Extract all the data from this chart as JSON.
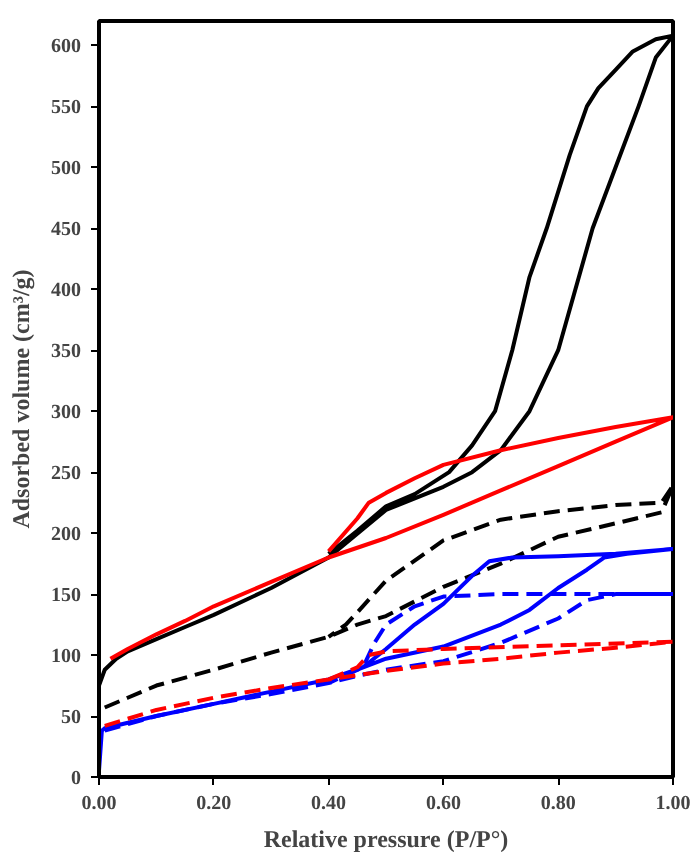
{
  "chart_data": {
    "type": "line",
    "xlabel": "Relative pressure (P/P°)",
    "ylabel": "Adsorbed volume (cm³/g)",
    "xlim": [
      0,
      1
    ],
    "ylim": [
      0,
      620
    ],
    "xticks": [
      {
        "value": 0,
        "label": "0.00"
      },
      {
        "value": 0.2,
        "label": "0.20"
      },
      {
        "value": 0.4,
        "label": "0.40"
      },
      {
        "value": 0.6,
        "label": "0.60"
      },
      {
        "value": 0.8,
        "label": "0.80"
      },
      {
        "value": 1,
        "label": "1.00"
      }
    ],
    "yticks": [
      0,
      50,
      100,
      150,
      200,
      250,
      300,
      350,
      400,
      450,
      500,
      550,
      600
    ],
    "grid": false,
    "marker": "none",
    "series": [
      {
        "color": "#000000",
        "line_style": "solid",
        "x": [
          0,
          0.01,
          0.03,
          0.05,
          0.1,
          0.15,
          0.2,
          0.3,
          0.4,
          0.5,
          0.6,
          0.65,
          0.7,
          0.75,
          0.8,
          0.86,
          0.9,
          0.94,
          0.97,
          1.0,
          0.97,
          0.93,
          0.9,
          0.87,
          0.85,
          0.82,
          0.78,
          0.75,
          0.72,
          0.69,
          0.65,
          0.61,
          0.55,
          0.5,
          0.45,
          0.4
        ],
        "values": [
          75,
          88,
          97,
          103,
          113,
          123,
          133,
          155,
          180,
          219,
          238,
          250,
          268,
          300,
          350,
          450,
          500,
          550,
          590,
          608,
          605,
          595,
          580,
          565,
          550,
          510,
          450,
          410,
          350,
          300,
          272,
          250,
          232,
          222,
          202,
          183
        ]
      },
      {
        "color": "#ff0000",
        "line_style": "solid",
        "x": [
          0.02,
          0.05,
          0.1,
          0.15,
          0.2,
          0.3,
          0.4,
          0.5,
          0.6,
          0.7,
          0.8,
          0.9,
          1.0,
          0.9,
          0.8,
          0.7,
          0.6,
          0.55,
          0.5,
          0.47,
          0.45,
          0.4
        ],
        "values": [
          97,
          105,
          117,
          128,
          140,
          160,
          180,
          196,
          215,
          235,
          255,
          275,
          295,
          287,
          278,
          268,
          256,
          245,
          233,
          225,
          212,
          185
        ]
      },
      {
        "color": "#000000",
        "line_style": "dashed",
        "x": [
          0.01,
          0.05,
          0.1,
          0.2,
          0.3,
          0.4,
          0.45,
          0.5,
          0.6,
          0.7,
          0.8,
          0.9,
          0.98,
          1.0,
          0.98,
          0.9,
          0.8,
          0.7,
          0.6,
          0.5,
          0.45,
          0.43,
          0.4
        ],
        "values": [
          57,
          65,
          75,
          88,
          102,
          115,
          125,
          132,
          156,
          175,
          197,
          208,
          217,
          239,
          225,
          223,
          218,
          211,
          194,
          161,
          135,
          125,
          115
        ]
      },
      {
        "color": "#0000ff",
        "line_style": "solid",
        "x": [
          0,
          0.005,
          0.01,
          0.1,
          0.2,
          0.3,
          0.4,
          0.45,
          0.5,
          0.6,
          0.7,
          0.75,
          0.8,
          0.85,
          0.88,
          0.92,
          1.0,
          0.9,
          0.8,
          0.72,
          0.68,
          0.65,
          0.6,
          0.55,
          0.5,
          0.46,
          0.4
        ],
        "values": [
          5,
          38,
          40,
          50,
          60,
          70,
          80,
          88,
          97,
          107,
          125,
          137,
          155,
          170,
          180,
          183,
          187,
          183,
          181,
          180,
          177,
          165,
          142,
          125,
          105,
          90,
          80
        ]
      },
      {
        "color": "#0000ff",
        "line_style": "dashed",
        "x": [
          0.01,
          0.1,
          0.2,
          0.3,
          0.4,
          0.45,
          0.5,
          0.6,
          0.7,
          0.8,
          0.85,
          0.9,
          1.0,
          0.7,
          0.6,
          0.55,
          0.5,
          0.48,
          0.46,
          0.4
        ],
        "values": [
          38,
          50,
          60,
          68,
          77,
          83,
          88,
          95,
          110,
          130,
          145,
          150,
          150,
          150,
          148,
          140,
          125,
          110,
          90,
          77
        ]
      },
      {
        "color": "#ff0000",
        "line_style": "dashed",
        "x": [
          0.01,
          0.1,
          0.2,
          0.3,
          0.4,
          0.5,
          0.6,
          0.7,
          0.8,
          0.9,
          1.0,
          0.8,
          0.6,
          0.5,
          0.47,
          0.45,
          0.4
        ],
        "values": [
          42,
          55,
          65,
          73,
          80,
          87,
          93,
          97,
          102,
          106,
          111,
          108,
          105,
          103,
          100,
          90,
          80
        ]
      }
    ]
  }
}
